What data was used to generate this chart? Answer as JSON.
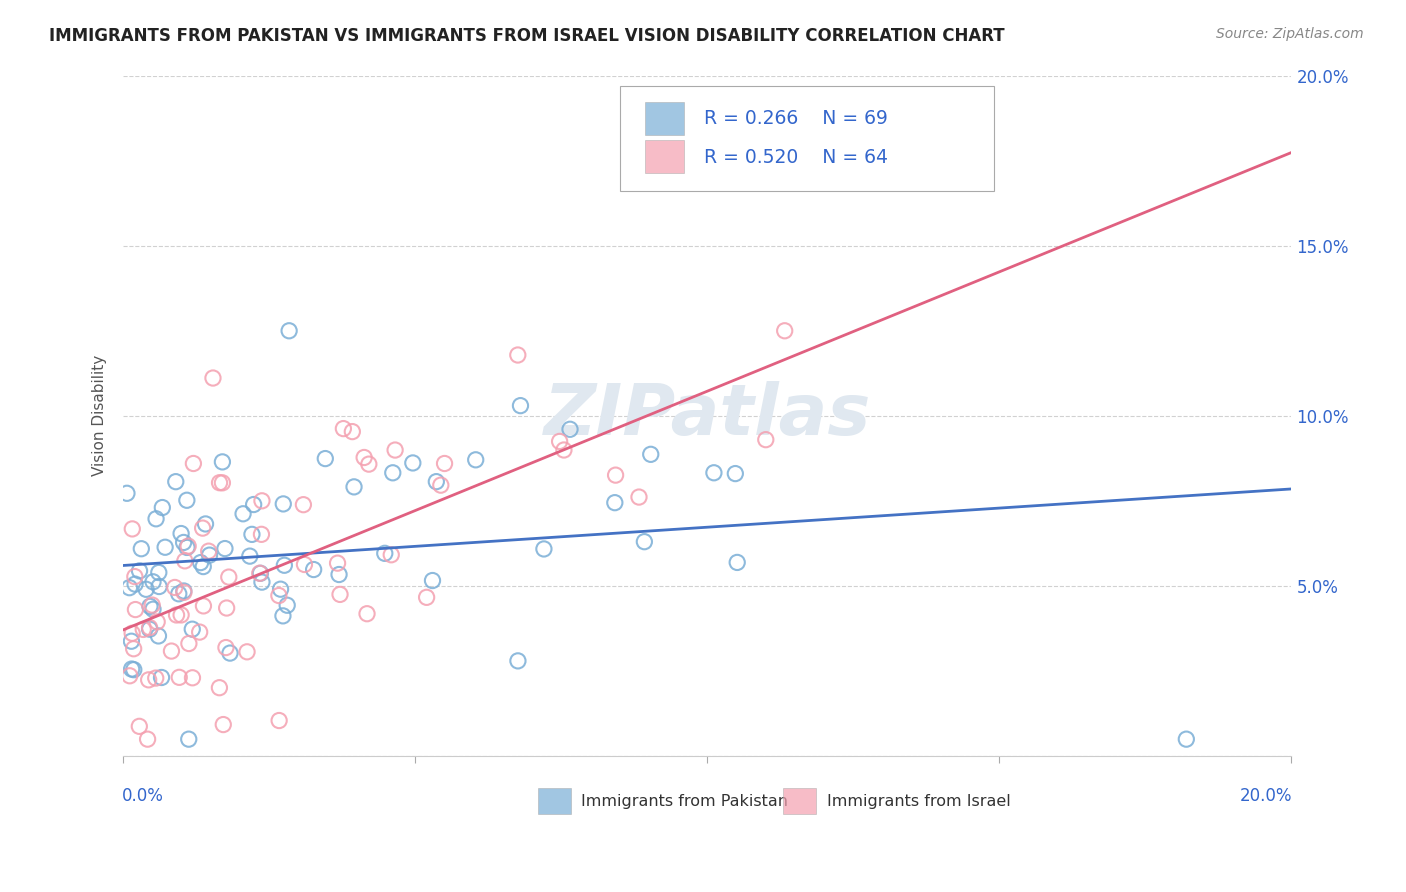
{
  "title": "IMMIGRANTS FROM PAKISTAN VS IMMIGRANTS FROM ISRAEL VISION DISABILITY CORRELATION CHART",
  "source": "Source: ZipAtlas.com",
  "ylabel": "Vision Disability",
  "pakistan_color": "#7aaed6",
  "israel_color": "#f4a0b0",
  "pakistan_line_color": "#4472c4",
  "israel_line_color": "#e06080",
  "pakistan_R": 0.266,
  "pakistan_N": 69,
  "israel_R": 0.52,
  "israel_N": 64,
  "legend_text_color": "#3366cc",
  "watermark_color": "#e0e8f0",
  "xlim": [
    0.0,
    0.2
  ],
  "ylim": [
    0.0,
    0.2
  ],
  "yticks": [
    0.0,
    0.05,
    0.1,
    0.15,
    0.2
  ],
  "ytick_labels": [
    "",
    "5.0%",
    "10.0%",
    "15.0%",
    "20.0%"
  ]
}
